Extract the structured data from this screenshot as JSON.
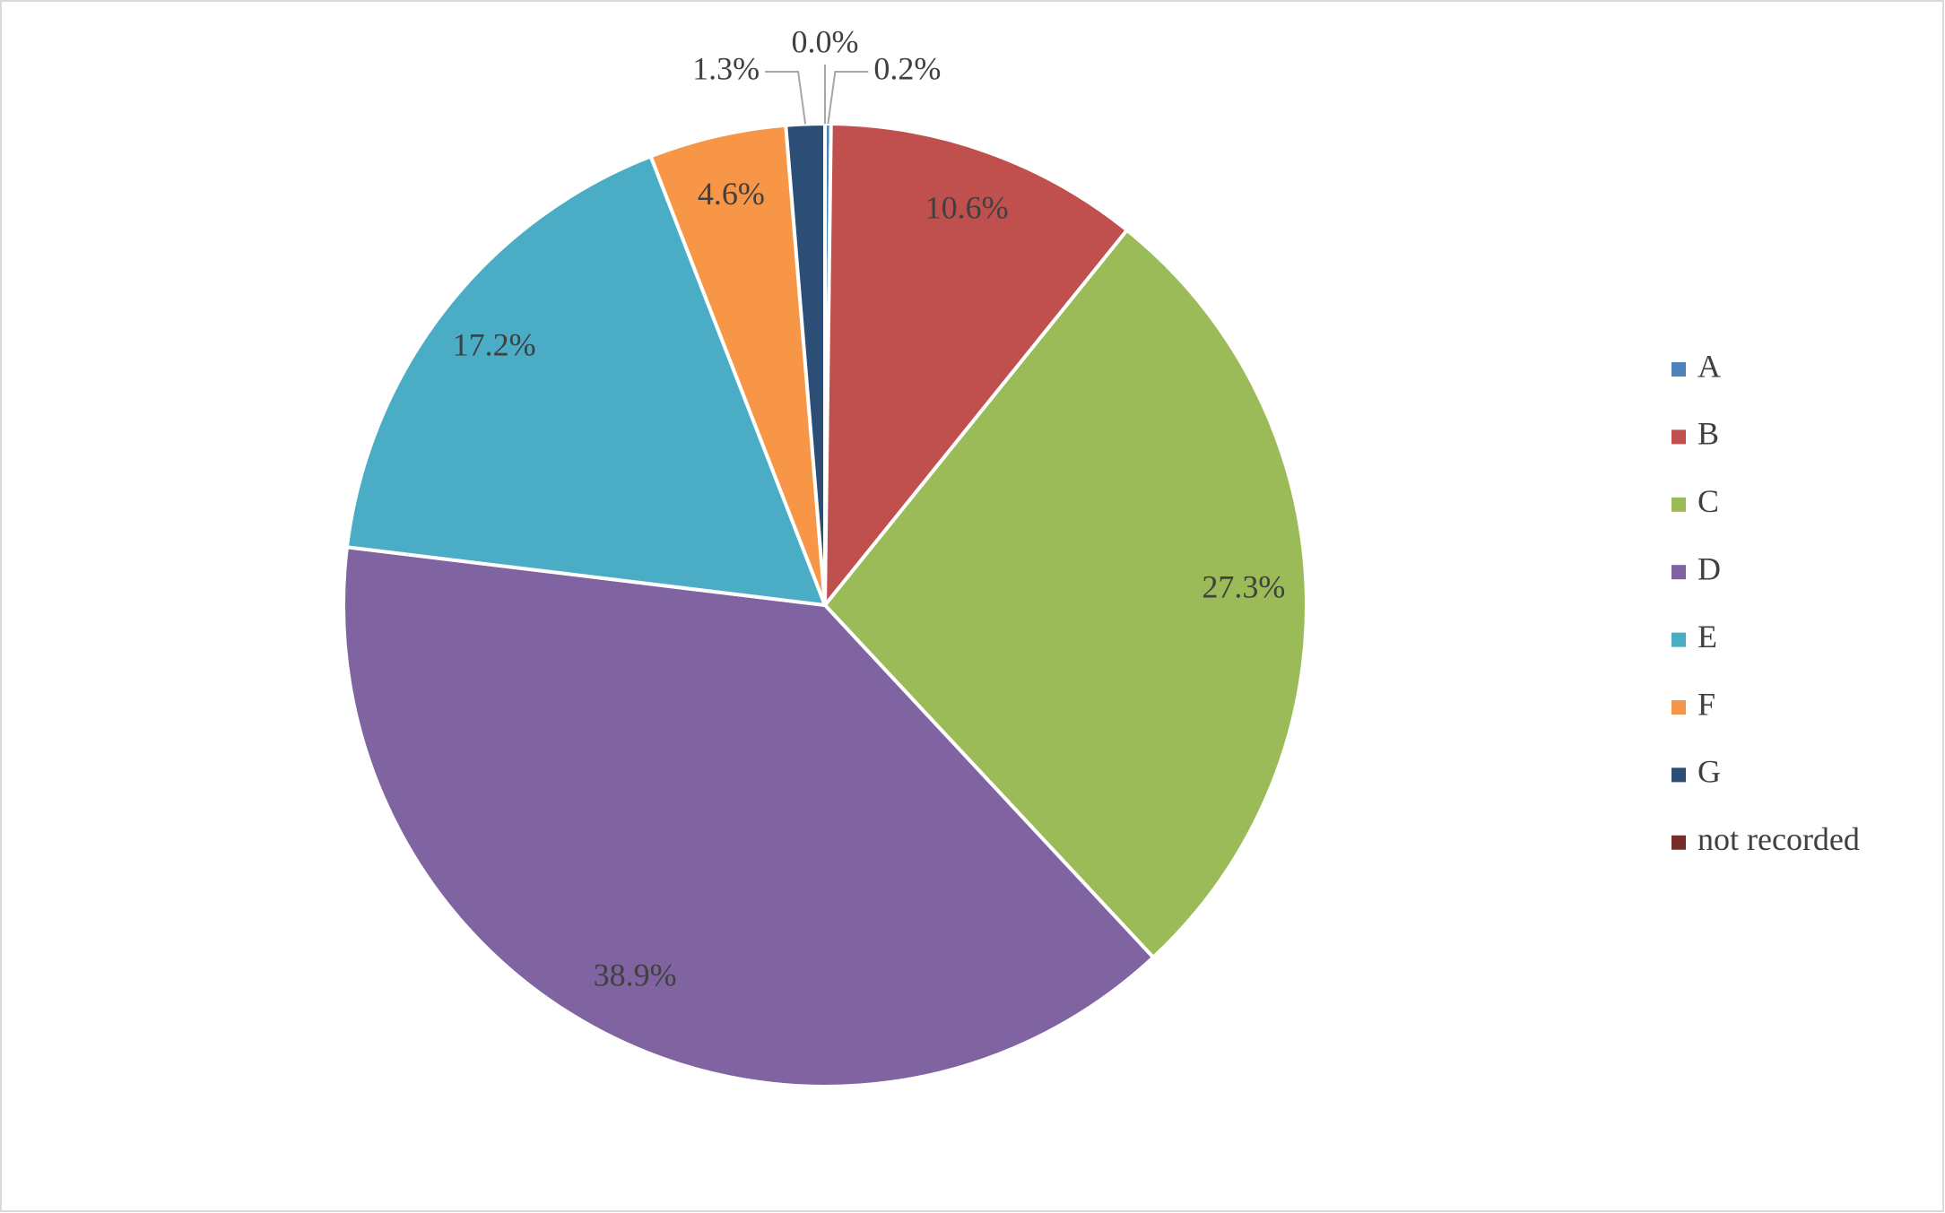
{
  "chart_data": {
    "type": "pie",
    "categories": [
      "A",
      "B",
      "C",
      "D",
      "E",
      "F",
      "G",
      "not recorded"
    ],
    "values": [
      0.2,
      10.6,
      27.3,
      38.9,
      17.2,
      4.6,
      1.3,
      0.0
    ],
    "value_labels": [
      "0.2%",
      "10.6%",
      "27.3%",
      "38.9%",
      "17.2%",
      "4.6%",
      "1.3%",
      "0.0%"
    ],
    "colors": [
      "#4f81bd",
      "#c0504d",
      "#9bbb59",
      "#8064a2",
      "#4bacc6",
      "#f79646",
      "#2c4d75",
      "#772c2a"
    ],
    "legend": "right"
  }
}
